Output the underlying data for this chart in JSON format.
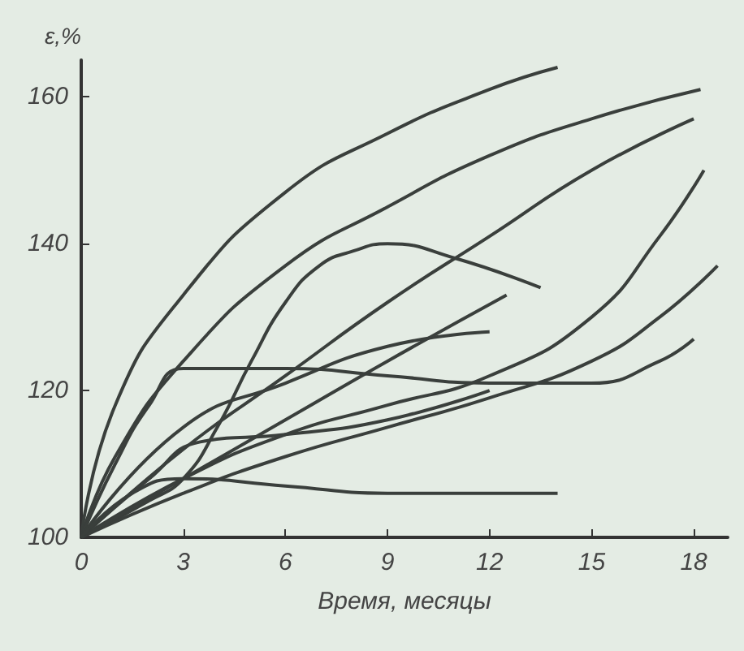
{
  "chart_data": {
    "type": "line",
    "xlabel": "Время, месяцы",
    "ylabel": "ε,%",
    "xlim": [
      0,
      19
    ],
    "xticks": [
      0,
      3,
      6,
      9,
      12,
      15,
      18
    ],
    "ylim": [
      100,
      165
    ],
    "yticks": [
      100,
      120,
      140,
      160
    ],
    "grid": false,
    "marker": "none",
    "line_style": "solid",
    "series": [
      {
        "color": "#3a3f3c",
        "x": [
          0,
          1,
          3,
          6,
          9,
          12,
          14
        ],
        "values": [
          100,
          118,
          133,
          147,
          155,
          161,
          164
        ]
      },
      {
        "color": "#3a3f3c",
        "x": [
          0,
          1,
          3,
          6,
          9,
          12,
          15,
          18.2
        ],
        "values": [
          100,
          111,
          124,
          137,
          145,
          152,
          157,
          161
        ]
      },
      {
        "color": "#3a3f3c",
        "x": [
          0,
          3,
          6,
          9,
          12,
          15,
          18
        ],
        "values": [
          100,
          112,
          122,
          132,
          141,
          150,
          157
        ]
      },
      {
        "color": "#3a3f3c",
        "x": [
          0,
          2,
          3,
          4,
          5,
          6,
          7,
          8,
          9,
          11,
          13.5
        ],
        "values": [
          100,
          105,
          108,
          115,
          124,
          132,
          137,
          139,
          140,
          138,
          134
        ]
      },
      {
        "color": "#3a3f3c",
        "x": [
          0,
          3,
          6,
          9,
          12,
          15,
          17,
          18.3
        ],
        "values": [
          100,
          108,
          114,
          118,
          122,
          130,
          141,
          150
        ]
      },
      {
        "color": "#3a3f3c",
        "x": [
          0,
          3,
          6,
          9,
          12,
          15,
          17,
          18.7
        ],
        "values": [
          100,
          106,
          111,
          115,
          119,
          124,
          130,
          137
        ]
      },
      {
        "color": "#3a3f3c",
        "x": [
          0,
          1,
          2,
          3,
          6,
          9,
          12,
          15,
          17,
          18
        ],
        "values": [
          100,
          110,
          118,
          123,
          123,
          122,
          121,
          121,
          124,
          127
        ]
      },
      {
        "color": "#3a3f3c",
        "x": [
          0,
          3,
          6,
          9,
          12
        ],
        "values": [
          100,
          115,
          121,
          126,
          128
        ]
      },
      {
        "color": "#3a3f3c",
        "x": [
          0,
          3,
          6,
          9,
          12.5
        ],
        "values": [
          100,
          108,
          116,
          124,
          133
        ]
      },
      {
        "color": "#3a3f3c",
        "x": [
          0,
          2,
          3.5,
          6,
          9,
          12
        ],
        "values": [
          100,
          108,
          113,
          114,
          116,
          120
        ]
      },
      {
        "color": "#3a3f3c",
        "x": [
          0,
          1.5,
          3,
          6,
          9,
          12,
          14
        ],
        "values": [
          100,
          106,
          108,
          107,
          106,
          106,
          106
        ]
      }
    ]
  }
}
